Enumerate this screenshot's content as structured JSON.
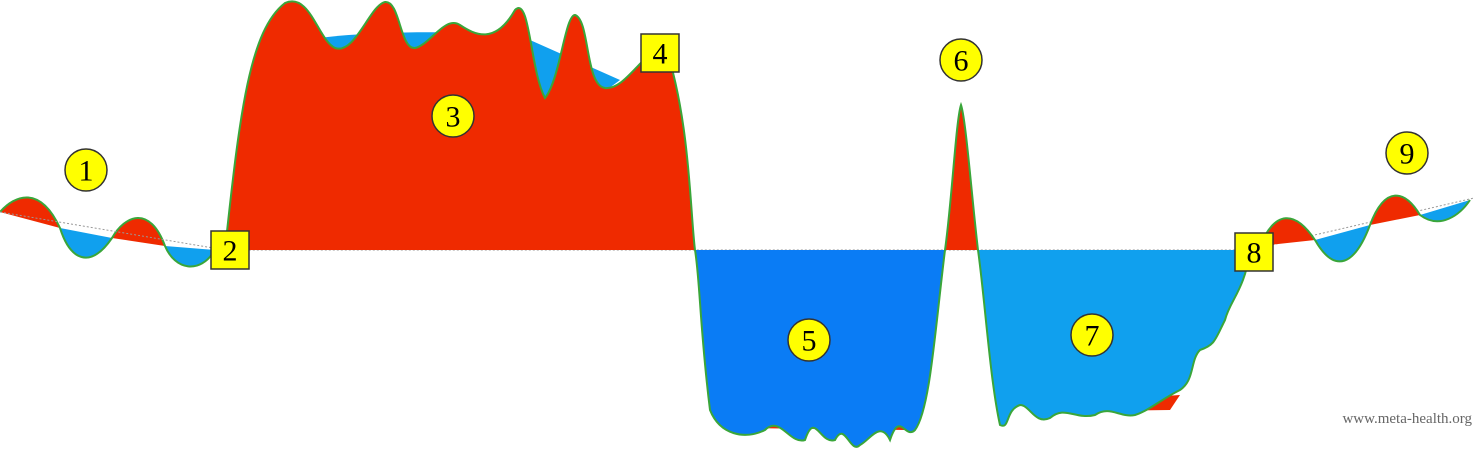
{
  "markers": [
    {
      "label": "1"
    },
    {
      "label": "2"
    },
    {
      "label": "3"
    },
    {
      "label": "4"
    },
    {
      "label": "5"
    },
    {
      "label": "6"
    },
    {
      "label": "7"
    },
    {
      "label": "8"
    },
    {
      "label": "9"
    }
  ],
  "watermark": "www.meta-health.org"
}
